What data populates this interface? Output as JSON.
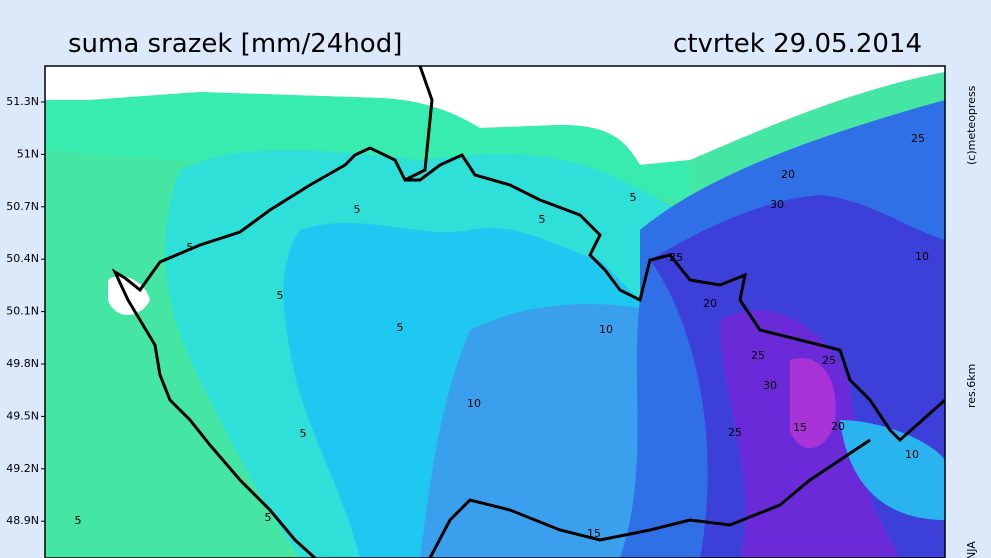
{
  "header": {
    "title": "suma srazek [mm/24hod]",
    "date": "ctvrtek 29.05.2014"
  },
  "latitude_labels": [
    "51.3N",
    "51N",
    "50.7N",
    "50.4N",
    "50.1N",
    "49.8N",
    "49.5N",
    "49.2N",
    "48.9N"
  ],
  "side_texts": {
    "copyright": "(c)meteopress",
    "resolution": "res.6km",
    "model": "NJA"
  },
  "contour_labels": [
    "5",
    "5",
    "5",
    "5",
    "5",
    "5",
    "5",
    "5",
    "5",
    "10",
    "10",
    "10",
    "10",
    "15",
    "15",
    "20",
    "20",
    "20",
    "25",
    "25",
    "25",
    "25",
    "25",
    "30",
    "30"
  ]
}
